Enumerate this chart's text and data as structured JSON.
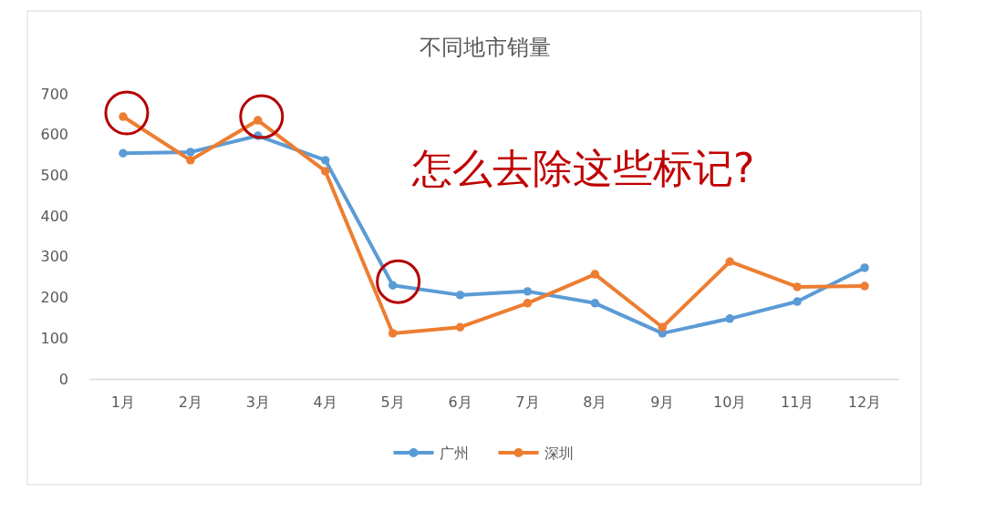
{
  "chart_data": {
    "type": "line",
    "title": "不同地市销量",
    "categories": [
      "1月",
      "2月",
      "3月",
      "4月",
      "5月",
      "6月",
      "7月",
      "8月",
      "9月",
      "10月",
      "11月",
      "12月"
    ],
    "series": [
      {
        "name": "广州",
        "color": "#5b9bd5",
        "values": [
          554,
          557,
          597,
          537,
          230,
          206,
          215,
          186,
          112,
          148,
          190,
          273
        ]
      },
      {
        "name": "深圳",
        "color": "#ed7d31",
        "values": [
          644,
          537,
          635,
          510,
          112,
          127,
          186,
          257,
          127,
          288,
          226,
          228
        ]
      }
    ],
    "ylim": [
      0,
      700
    ],
    "yticks": [
      0,
      100,
      200,
      300,
      400,
      500,
      600,
      700
    ],
    "grid": false,
    "legend": "bottom",
    "marker": "circle",
    "line_style": "solid",
    "annotations": [
      "怎么去除这些标记?"
    ]
  }
}
